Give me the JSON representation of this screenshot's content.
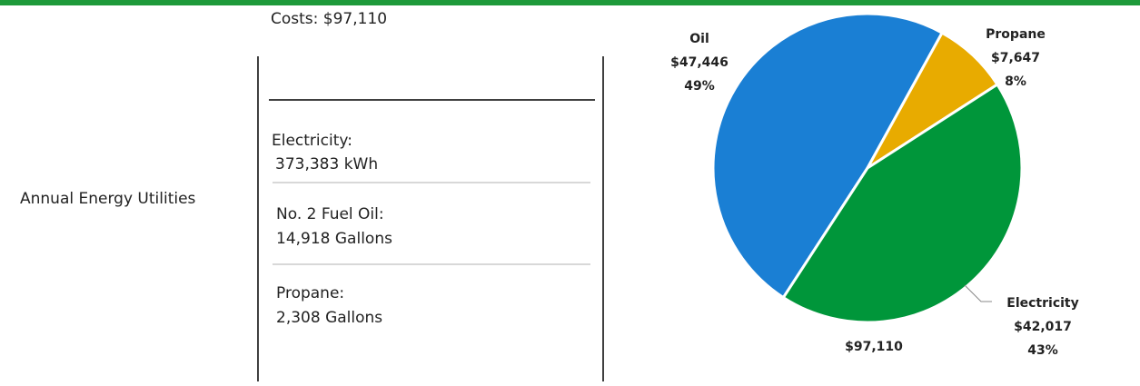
{
  "row_label": "Annual Energy Utilities",
  "costs_header": "Costs: $97,110",
  "items": [
    {
      "name": "Electricity:",
      "amount": "373,383 kWh"
    },
    {
      "name": "No. 2 Fuel Oil:",
      "amount": "14,918 Gallons"
    },
    {
      "name": "Propane:",
      "amount": "2,308 Gallons"
    }
  ],
  "chart_data": {
    "type": "pie",
    "categories": [
      "Oil",
      "Propane",
      "Electricity"
    ],
    "values": [
      47446,
      7647,
      42017
    ],
    "value_labels": [
      "$47,446",
      "$7,647",
      "$42,017"
    ],
    "percent_labels": [
      "49%",
      "8%",
      "43%"
    ],
    "colors": [
      "#1a7fd4",
      "#e8ab00",
      "#00963a"
    ],
    "total_label": "$97,110"
  }
}
